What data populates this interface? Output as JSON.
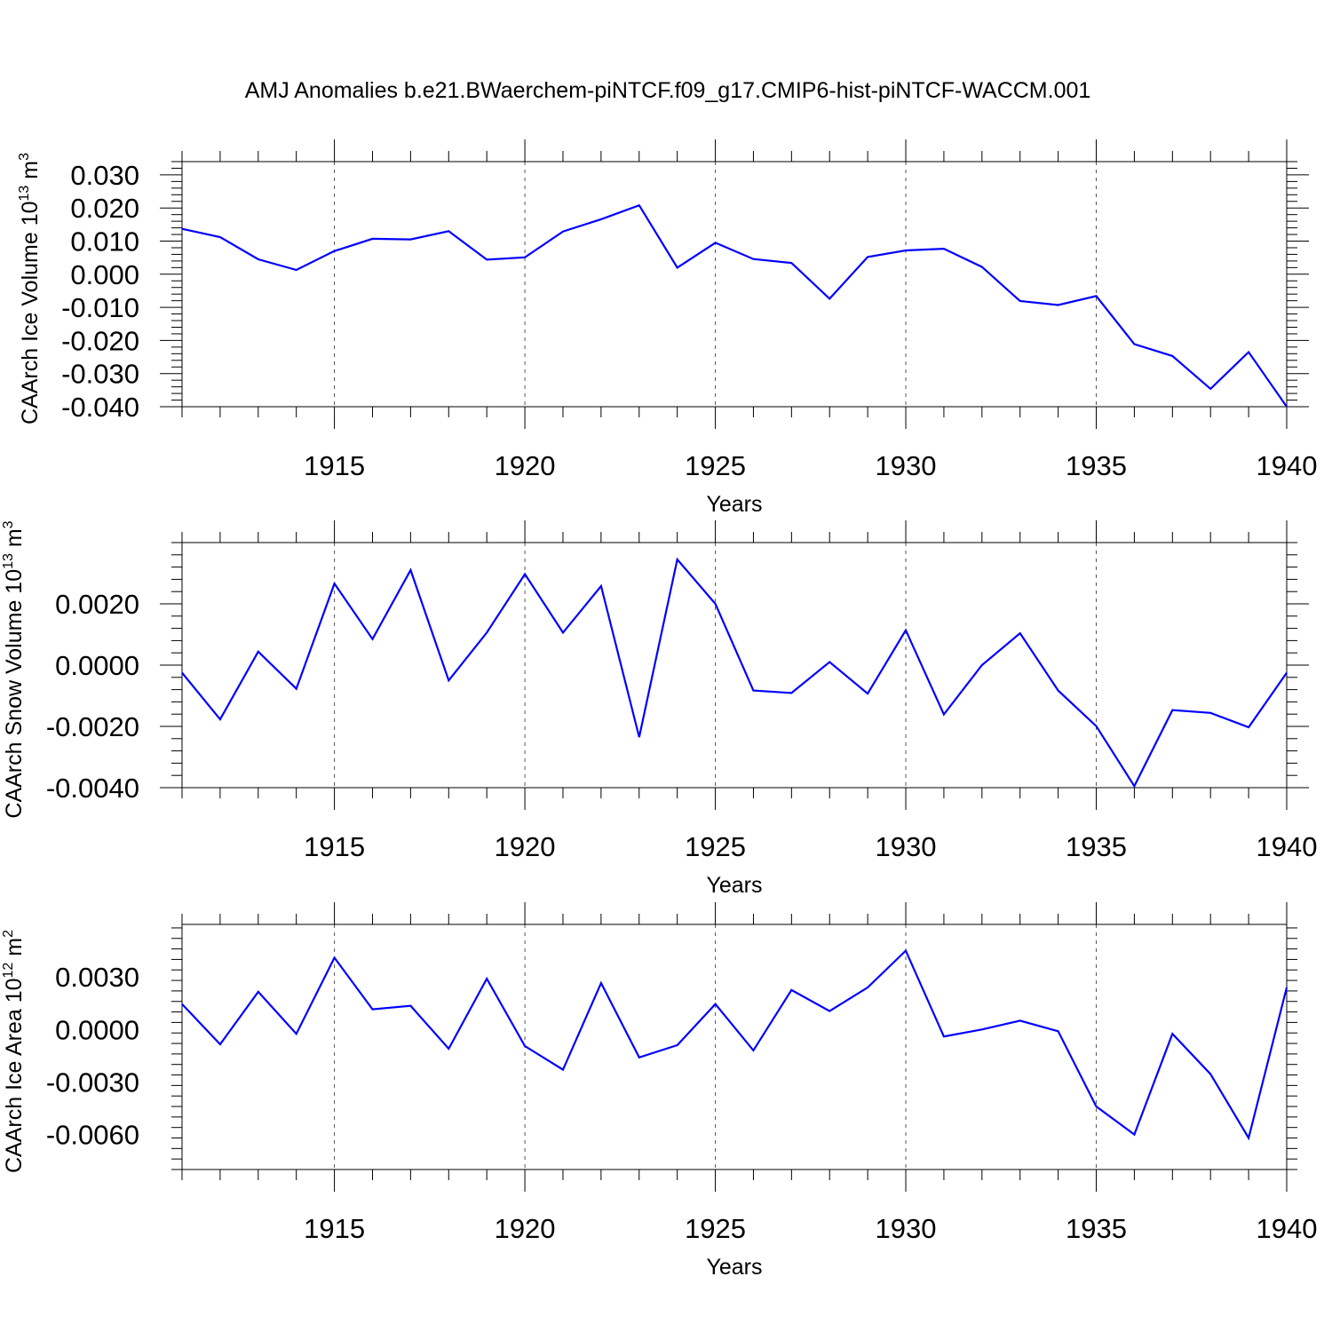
{
  "title": "AMJ Anomalies b.e21.BWaerchem-piNTCF.f09_g17.CMIP6-hist-piNTCF-WACCM.001",
  "colors": {
    "series": "#0000ff",
    "axis": "#000000",
    "grid": "#555555"
  },
  "chart_data": [
    {
      "type": "line",
      "ylabel": "CAArch Ice Volume 10",
      "ylabel_exp": "13",
      "ylabel_unit": " m",
      "ylabel_unit_exp": "3",
      "xlabel": "Years",
      "xlim": [
        1911,
        1940
      ],
      "ylim": [
        -0.04,
        0.034
      ],
      "yticks": [
        0.03,
        0.02,
        0.01,
        0.0,
        -0.01,
        -0.02,
        -0.03,
        -0.04
      ],
      "yticklabels": [
        "0.030",
        "0.020",
        "0.010",
        "0.000",
        "-0.010",
        "-0.020",
        "-0.030",
        "-0.040"
      ],
      "xticks": [
        1915,
        1920,
        1925,
        1930,
        1935,
        1940
      ],
      "xticklabels": [
        "1915",
        "1920",
        "1925",
        "1930",
        "1935",
        "1940"
      ],
      "grid": "vertical dashed at major x ticks",
      "x": [
        1911,
        1912,
        1913,
        1914,
        1915,
        1916,
        1917,
        1918,
        1919,
        1920,
        1921,
        1922,
        1923,
        1924,
        1925,
        1926,
        1927,
        1928,
        1929,
        1930,
        1931,
        1932,
        1933,
        1934,
        1935,
        1936,
        1937,
        1938,
        1939,
        1940
      ],
      "values": [
        0.0137,
        0.0112,
        0.0045,
        0.0013,
        0.007,
        0.0107,
        0.0105,
        0.013,
        0.0044,
        0.0051,
        0.0129,
        0.0166,
        0.0208,
        0.002,
        0.0095,
        0.0046,
        0.0034,
        -0.0074,
        0.0052,
        0.0072,
        0.0077,
        0.0022,
        -0.0081,
        -0.0093,
        -0.0066,
        -0.0211,
        -0.0247,
        -0.0346,
        -0.0235,
        -0.04
      ]
    },
    {
      "type": "line",
      "ylabel": "CAArch Snow Volume 10",
      "ylabel_exp": "13",
      "ylabel_unit": " m",
      "ylabel_unit_exp": "3",
      "xlabel": "Years",
      "xlim": [
        1911,
        1940
      ],
      "ylim": [
        -0.004,
        0.004
      ],
      "yticks": [
        0.002,
        0.0,
        -0.002,
        -0.004
      ],
      "yticklabels": [
        "0.0020",
        "0.0000",
        "-0.0020",
        "-0.0040"
      ],
      "xticks": [
        1915,
        1920,
        1925,
        1930,
        1935,
        1940
      ],
      "xticklabels": [
        "1915",
        "1920",
        "1925",
        "1930",
        "1935",
        "1940"
      ],
      "grid": "vertical dashed at major x ticks",
      "x": [
        1911,
        1912,
        1913,
        1914,
        1915,
        1916,
        1917,
        1918,
        1919,
        1920,
        1921,
        1922,
        1923,
        1924,
        1925,
        1926,
        1927,
        1928,
        1929,
        1930,
        1931,
        1932,
        1933,
        1934,
        1935,
        1936,
        1937,
        1938,
        1939,
        1940
      ],
      "values": [
        -0.00025,
        -0.00177,
        0.00044,
        -0.00077,
        0.00266,
        0.00085,
        0.0031,
        -0.0005,
        0.00106,
        0.00297,
        0.00106,
        0.00258,
        -0.00235,
        0.00345,
        0.002,
        -0.00083,
        -0.00091,
        0.0001,
        -0.00093,
        0.00114,
        -0.00161,
        0.0,
        0.00104,
        -0.00083,
        -0.00199,
        -0.00395,
        -0.00147,
        -0.00156,
        -0.00203,
        -0.00025
      ]
    },
    {
      "type": "line",
      "ylabel": "CAArch Ice Area 10",
      "ylabel_exp": "12",
      "ylabel_unit": " m",
      "ylabel_unit_exp": "2",
      "xlabel": "Years",
      "xlim": [
        1911,
        1940
      ],
      "ylim": [
        -0.008,
        0.006
      ],
      "yticks": [
        0.003,
        0.0,
        -0.003,
        -0.006
      ],
      "yticklabels": [
        "0.0030",
        "0.0000",
        "-0.0030",
        "-0.0060"
      ],
      "xticks": [
        1915,
        1920,
        1925,
        1930,
        1935,
        1940
      ],
      "xticklabels": [
        "1915",
        "1920",
        "1925",
        "1930",
        "1935",
        "1940"
      ],
      "grid": "vertical dashed at major x ticks",
      "x": [
        1911,
        1912,
        1913,
        1914,
        1915,
        1916,
        1917,
        1918,
        1919,
        1920,
        1921,
        1922,
        1923,
        1924,
        1925,
        1926,
        1927,
        1928,
        1929,
        1930,
        1931,
        1932,
        1933,
        1934,
        1935,
        1936,
        1937,
        1938,
        1939,
        1940
      ],
      "values": [
        0.00145,
        -0.00085,
        0.00215,
        -0.00025,
        0.0041,
        0.00115,
        0.00135,
        -0.0011,
        0.0029,
        -0.00095,
        -0.0023,
        0.00265,
        -0.0016,
        -0.0009,
        0.00145,
        -0.0012,
        0.00225,
        0.00105,
        0.0024,
        0.0045,
        -0.0004,
        0.0,
        0.0005,
        -0.0001,
        -0.0044,
        -0.006,
        -0.00025,
        -0.00255,
        -0.0062,
        0.0024
      ]
    }
  ]
}
